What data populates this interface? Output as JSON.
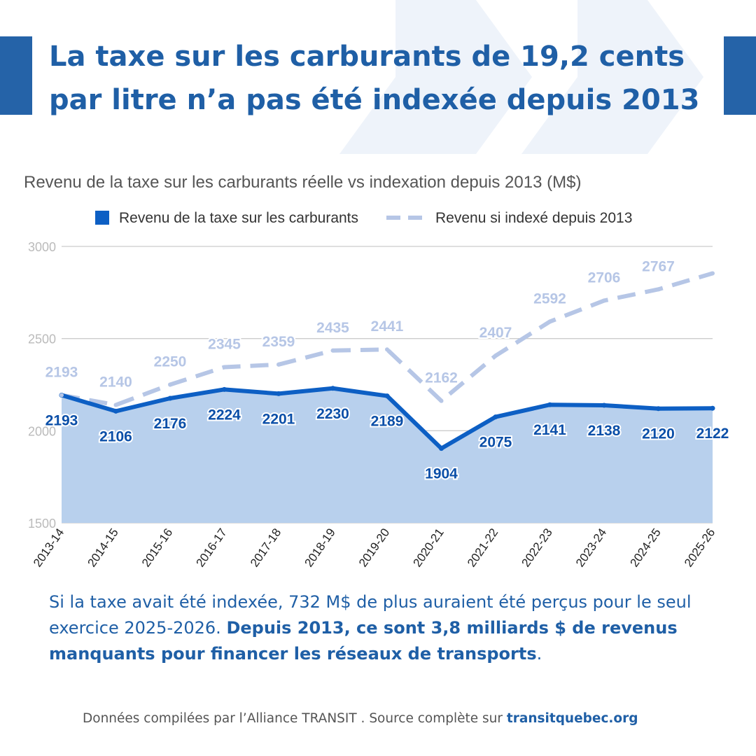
{
  "header": {
    "title": "La taxe sur les carburants de 19,2 cents par litre n’a pas été indexée depuis 2013"
  },
  "colors": {
    "brand": "#2563a8",
    "actual_line": "#0d5fc4",
    "actual_fill": "#b8d0ed",
    "indexed_line": "#b6c6e6",
    "grid": "#cccccc",
    "deco": "#eef3fa"
  },
  "chart_data": {
    "type": "area",
    "title": "Revenu de la taxe sur les carburants réelle vs indexation depuis 2013 (M$)",
    "legend_position": "top",
    "grid": true,
    "xlabel": "",
    "ylabel": "",
    "ylim": [
      1500,
      3000
    ],
    "yticks": [
      1500,
      2000,
      2500,
      3000
    ],
    "categories": [
      "2013-14",
      "2014-15",
      "2015-16",
      "2016-17",
      "2017-18",
      "2018-19",
      "2019-20",
      "2020-21",
      "2021-22",
      "2022-23",
      "2023-24",
      "2024-25",
      "2025-26"
    ],
    "series": [
      {
        "name": "Revenu de la taxe sur les carburants",
        "style": "solid-area",
        "values": [
          2193,
          2106,
          2176,
          2224,
          2201,
          2230,
          2189,
          1904,
          2075,
          2141,
          2138,
          2120,
          2122
        ],
        "labels": [
          "2193",
          "2106",
          "2176",
          "2224",
          "2201",
          "2230",
          "2189",
          "1904",
          "2075",
          "2141",
          "2138",
          "2120",
          "2122"
        ]
      },
      {
        "name": "Revenu si indexé depuis 2013",
        "style": "dashed",
        "values": [
          2193,
          2140,
          2250,
          2345,
          2359,
          2435,
          2441,
          2162,
          2407,
          2592,
          2706,
          2767,
          2854
        ],
        "labels": [
          "2193",
          "2140",
          "2250",
          "2345",
          "2359",
          "2435",
          "2441",
          "2162",
          "2407",
          "2592",
          "2706",
          "2767",
          ""
        ]
      }
    ]
  },
  "summary": {
    "text": "Si la taxe avait été indexée, 732 M$ de plus auraient été perçus pour le seul exercice 2025-2026. ",
    "emphasis": "Depuis 2013, ce sont 3,8 milliards $ de revenus manquants pour financer les réseaux de transports",
    "end": "."
  },
  "footer": {
    "credit": "Données compilées par l’Alliance TRANSIT . Source complète sur ",
    "link": "transitquebec.org"
  }
}
